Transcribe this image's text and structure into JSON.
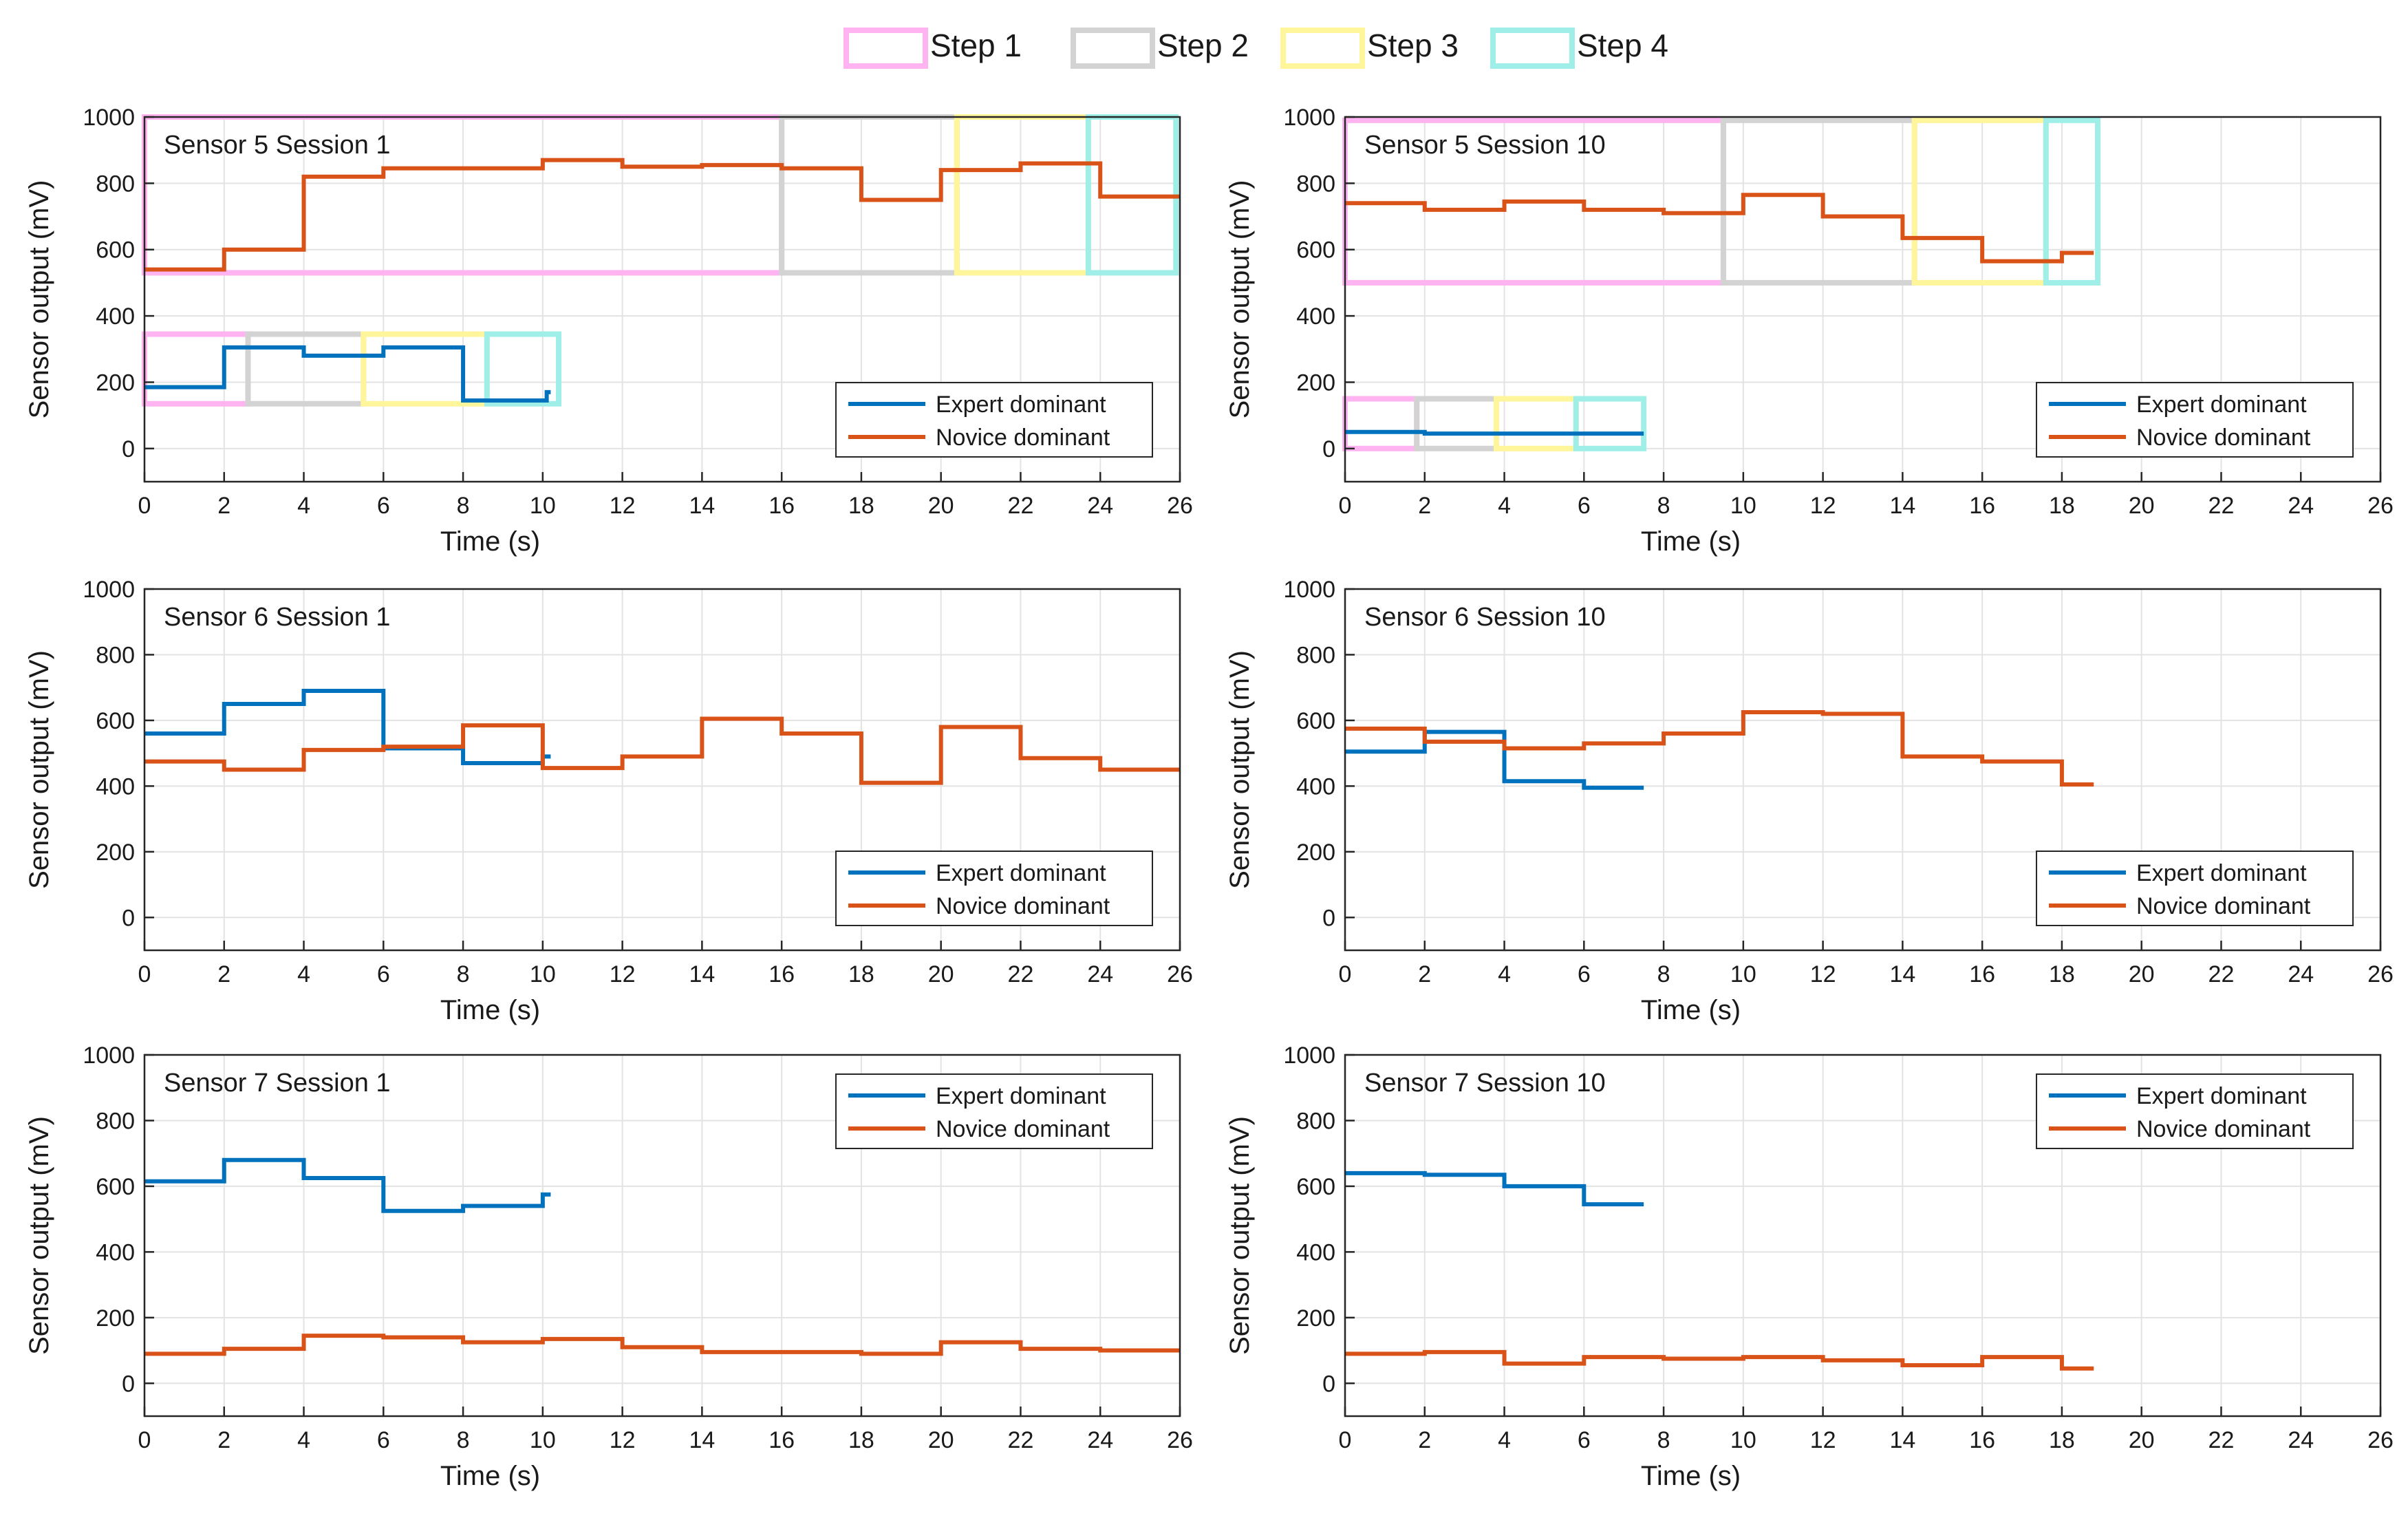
{
  "colors": {
    "expert": "#0072BD",
    "novice": "#D95319",
    "step1": "#FFB3F0",
    "step2": "#D3D3D3",
    "step3": "#FFF59A",
    "step4": "#9FEFE8",
    "grid": "#E3E3E3",
    "axis": "#262626"
  },
  "top_legend": [
    {
      "label": "Step 1",
      "color_key": "step1"
    },
    {
      "label": "Step 2",
      "color_key": "step2"
    },
    {
      "label": "Step 3",
      "color_key": "step3"
    },
    {
      "label": "Step 4",
      "color_key": "step4"
    }
  ],
  "chart_data": [
    {
      "type": "line",
      "title": "Sensor 5 Session 1",
      "xlabel": "Time (s)",
      "ylabel": "Sensor output (mV)",
      "xlim": [
        0,
        26
      ],
      "ylim": [
        -100,
        1000
      ],
      "xticks": [
        "0",
        "2",
        "4",
        "6",
        "8",
        "10",
        "12",
        "14",
        "16",
        "18",
        "20",
        "22",
        "24",
        "26"
      ],
      "yticks": [
        "0",
        "200",
        "400",
        "600",
        "800",
        "1000"
      ],
      "legend_position": "bottom-right",
      "series": [
        {
          "name": "Expert dominant",
          "color_key": "expert",
          "steps": [
            [
              0,
              185
            ],
            [
              2,
              305
            ],
            [
              4,
              280
            ],
            [
              6,
              305
            ],
            [
              8,
              145
            ],
            [
              10,
              145
            ],
            [
              10.1,
              170
            ]
          ],
          "end": 10.2
        },
        {
          "name": "Novice dominant",
          "color_key": "novice",
          "steps": [
            [
              0,
              540
            ],
            [
              2,
              600
            ],
            [
              4,
              820
            ],
            [
              6,
              845
            ],
            [
              8,
              845
            ],
            [
              10,
              870
            ],
            [
              12,
              850
            ],
            [
              14,
              855
            ],
            [
              16,
              845
            ],
            [
              18,
              750
            ],
            [
              20,
              840
            ],
            [
              22,
              860
            ],
            [
              24,
              760
            ]
          ],
          "end": 26
        }
      ],
      "step_boxes": [
        {
          "step": "step1",
          "x": [
            0,
            16
          ],
          "y": [
            530,
            1000
          ]
        },
        {
          "step": "step2",
          "x": [
            16,
            20.4
          ],
          "y": [
            530,
            1000
          ]
        },
        {
          "step": "step3",
          "x": [
            20.4,
            23.7
          ],
          "y": [
            530,
            1000
          ]
        },
        {
          "step": "step4",
          "x": [
            23.7,
            25.9
          ],
          "y": [
            530,
            1000
          ]
        },
        {
          "step": "step1",
          "x": [
            0,
            2.6
          ],
          "y": [
            135,
            345
          ]
        },
        {
          "step": "step2",
          "x": [
            2.6,
            5.5
          ],
          "y": [
            135,
            345
          ]
        },
        {
          "step": "step3",
          "x": [
            5.5,
            8.6
          ],
          "y": [
            135,
            345
          ]
        },
        {
          "step": "step4",
          "x": [
            8.6,
            10.4
          ],
          "y": [
            135,
            345
          ]
        }
      ]
    },
    {
      "type": "line",
      "title": "Sensor 5 Session 10",
      "xlabel": "Time (s)",
      "ylabel": "Sensor output (mV)",
      "xlim": [
        0,
        26
      ],
      "ylim": [
        -100,
        1000
      ],
      "xticks": [
        "0",
        "2",
        "4",
        "6",
        "8",
        "10",
        "12",
        "14",
        "16",
        "18",
        "20",
        "22",
        "24",
        "26"
      ],
      "yticks": [
        "0",
        "200",
        "400",
        "600",
        "800",
        "1000"
      ],
      "legend_position": "bottom-right",
      "series": [
        {
          "name": "Expert dominant",
          "color_key": "expert",
          "steps": [
            [
              0,
              50
            ],
            [
              2,
              45
            ],
            [
              4,
              45
            ],
            [
              6,
              45
            ]
          ],
          "end": 7.5
        },
        {
          "name": "Novice dominant",
          "color_key": "novice",
          "steps": [
            [
              0,
              740
            ],
            [
              2,
              720
            ],
            [
              4,
              745
            ],
            [
              6,
              720
            ],
            [
              8,
              710
            ],
            [
              10,
              765
            ],
            [
              12,
              700
            ],
            [
              14,
              635
            ],
            [
              16,
              565
            ],
            [
              17.5,
              565
            ],
            [
              18,
              590
            ]
          ],
          "end": 18.8
        }
      ],
      "step_boxes": [
        {
          "step": "step1",
          "x": [
            0,
            9.5
          ],
          "y": [
            500,
            990
          ]
        },
        {
          "step": "step2",
          "x": [
            9.5,
            14.3
          ],
          "y": [
            500,
            990
          ]
        },
        {
          "step": "step3",
          "x": [
            14.3,
            17.6
          ],
          "y": [
            500,
            990
          ]
        },
        {
          "step": "step4",
          "x": [
            17.6,
            18.9
          ],
          "y": [
            500,
            990
          ]
        },
        {
          "step": "step1",
          "x": [
            0,
            1.8
          ],
          "y": [
            0,
            150
          ]
        },
        {
          "step": "step2",
          "x": [
            1.8,
            3.8
          ],
          "y": [
            0,
            150
          ]
        },
        {
          "step": "step3",
          "x": [
            3.8,
            5.8
          ],
          "y": [
            0,
            150
          ]
        },
        {
          "step": "step4",
          "x": [
            5.8,
            7.5
          ],
          "y": [
            0,
            150
          ]
        }
      ]
    },
    {
      "type": "line",
      "title": "Sensor 6 Session 1",
      "xlabel": "Time (s)",
      "ylabel": "Sensor output (mV)",
      "xlim": [
        0,
        26
      ],
      "ylim": [
        -100,
        1000
      ],
      "xticks": [
        "0",
        "2",
        "4",
        "6",
        "8",
        "10",
        "12",
        "14",
        "16",
        "18",
        "20",
        "22",
        "24",
        "26"
      ],
      "yticks": [
        "0",
        "200",
        "400",
        "600",
        "800",
        "1000"
      ],
      "legend_position": "bottom-right",
      "series": [
        {
          "name": "Expert dominant",
          "color_key": "expert",
          "steps": [
            [
              0,
              560
            ],
            [
              2,
              650
            ],
            [
              4,
              690
            ],
            [
              6,
              515
            ],
            [
              8,
              470
            ],
            [
              10,
              490
            ]
          ],
          "end": 10.2
        },
        {
          "name": "Novice dominant",
          "color_key": "novice",
          "steps": [
            [
              0,
              475
            ],
            [
              2,
              450
            ],
            [
              4,
              510
            ],
            [
              6,
              520
            ],
            [
              8,
              585
            ],
            [
              10,
              455
            ],
            [
              12,
              490
            ],
            [
              14,
              605
            ],
            [
              16,
              560
            ],
            [
              18,
              410
            ],
            [
              20,
              580
            ],
            [
              22,
              485
            ],
            [
              24,
              450
            ]
          ],
          "end": 26
        }
      ],
      "step_boxes": []
    },
    {
      "type": "line",
      "title": "Sensor 6 Session 10",
      "xlabel": "Time (s)",
      "ylabel": "Sensor output (mV)",
      "xlim": [
        0,
        26
      ],
      "ylim": [
        -100,
        1000
      ],
      "xticks": [
        "0",
        "2",
        "4",
        "6",
        "8",
        "10",
        "12",
        "14",
        "16",
        "18",
        "20",
        "22",
        "24",
        "26"
      ],
      "yticks": [
        "0",
        "200",
        "400",
        "600",
        "800",
        "1000"
      ],
      "legend_position": "bottom-right",
      "series": [
        {
          "name": "Expert dominant",
          "color_key": "expert",
          "steps": [
            [
              0,
              505
            ],
            [
              2,
              565
            ],
            [
              4,
              415
            ],
            [
              6,
              395
            ]
          ],
          "end": 7.5
        },
        {
          "name": "Novice dominant",
          "color_key": "novice",
          "steps": [
            [
              0,
              575
            ],
            [
              2,
              535
            ],
            [
              4,
              515
            ],
            [
              6,
              530
            ],
            [
              8,
              560
            ],
            [
              10,
              625
            ],
            [
              12,
              620
            ],
            [
              14,
              490
            ],
            [
              16,
              475
            ],
            [
              18,
              405
            ]
          ],
          "end": 18.8
        }
      ],
      "step_boxes": []
    },
    {
      "type": "line",
      "title": "Sensor 7 Session 1",
      "xlabel": "Time (s)",
      "ylabel": "Sensor output (mV)",
      "xlim": [
        0,
        26
      ],
      "ylim": [
        -100,
        1000
      ],
      "xticks": [
        "0",
        "2",
        "4",
        "6",
        "8",
        "10",
        "12",
        "14",
        "16",
        "18",
        "20",
        "22",
        "24",
        "26"
      ],
      "yticks": [
        "0",
        "200",
        "400",
        "600",
        "800",
        "1000"
      ],
      "legend_position": "top-right",
      "series": [
        {
          "name": "Expert dominant",
          "color_key": "expert",
          "steps": [
            [
              0,
              615
            ],
            [
              2,
              680
            ],
            [
              4,
              625
            ],
            [
              6,
              525
            ],
            [
              8,
              540
            ],
            [
              10,
              575
            ]
          ],
          "end": 10.2
        },
        {
          "name": "Novice dominant",
          "color_key": "novice",
          "steps": [
            [
              0,
              90
            ],
            [
              2,
              105
            ],
            [
              4,
              145
            ],
            [
              6,
              140
            ],
            [
              8,
              125
            ],
            [
              10,
              135
            ],
            [
              12,
              110
            ],
            [
              14,
              95
            ],
            [
              16,
              95
            ],
            [
              18,
              90
            ],
            [
              20,
              125
            ],
            [
              22,
              105
            ],
            [
              24,
              100
            ]
          ],
          "end": 26
        }
      ],
      "step_boxes": []
    },
    {
      "type": "line",
      "title": "Sensor 7 Session 10",
      "xlabel": "Time (s)",
      "ylabel": "Sensor output (mV)",
      "xlim": [
        0,
        26
      ],
      "ylim": [
        -100,
        1000
      ],
      "xticks": [
        "0",
        "2",
        "4",
        "6",
        "8",
        "10",
        "12",
        "14",
        "16",
        "18",
        "20",
        "22",
        "24",
        "26"
      ],
      "yticks": [
        "0",
        "200",
        "400",
        "600",
        "800",
        "1000"
      ],
      "legend_position": "top-right",
      "series": [
        {
          "name": "Expert dominant",
          "color_key": "expert",
          "steps": [
            [
              0,
              640
            ],
            [
              2,
              635
            ],
            [
              4,
              600
            ],
            [
              6,
              545
            ]
          ],
          "end": 7.5
        },
        {
          "name": "Novice dominant",
          "color_key": "novice",
          "steps": [
            [
              0,
              90
            ],
            [
              2,
              95
            ],
            [
              4,
              60
            ],
            [
              6,
              80
            ],
            [
              8,
              75
            ],
            [
              10,
              80
            ],
            [
              12,
              70
            ],
            [
              14,
              55
            ],
            [
              16,
              80
            ],
            [
              18,
              45
            ]
          ],
          "end": 18.8
        }
      ],
      "step_boxes": []
    }
  ]
}
